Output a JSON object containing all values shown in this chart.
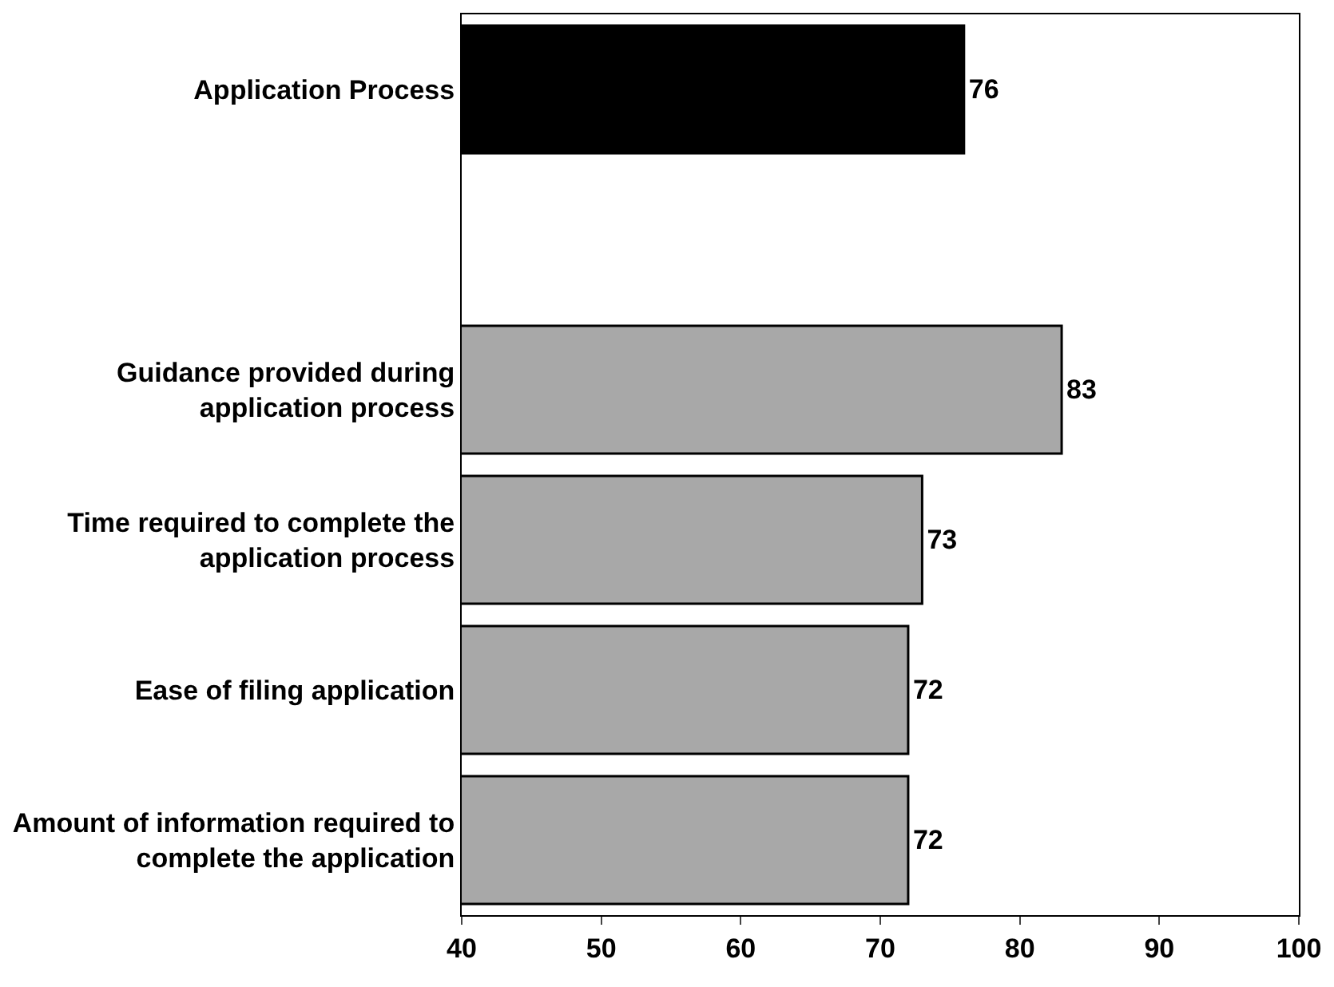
{
  "chart_data": {
    "type": "bar",
    "orientation": "horizontal",
    "categories": [
      "Application Process",
      null,
      "Guidance provided during application process",
      "Time required to complete the application process",
      "Ease of filing application",
      "Amount of information required to complete the application"
    ],
    "values": [
      76,
      null,
      83,
      73,
      72,
      72
    ],
    "colors": [
      "#000000",
      "#a8a8a8",
      "#a8a8a8",
      "#a8a8a8",
      "#a8a8a8",
      "#a8a8a8"
    ],
    "xlim": [
      40,
      100
    ],
    "xticks": [
      40,
      50,
      60,
      70,
      80,
      90,
      100
    ],
    "data_labels": true
  }
}
